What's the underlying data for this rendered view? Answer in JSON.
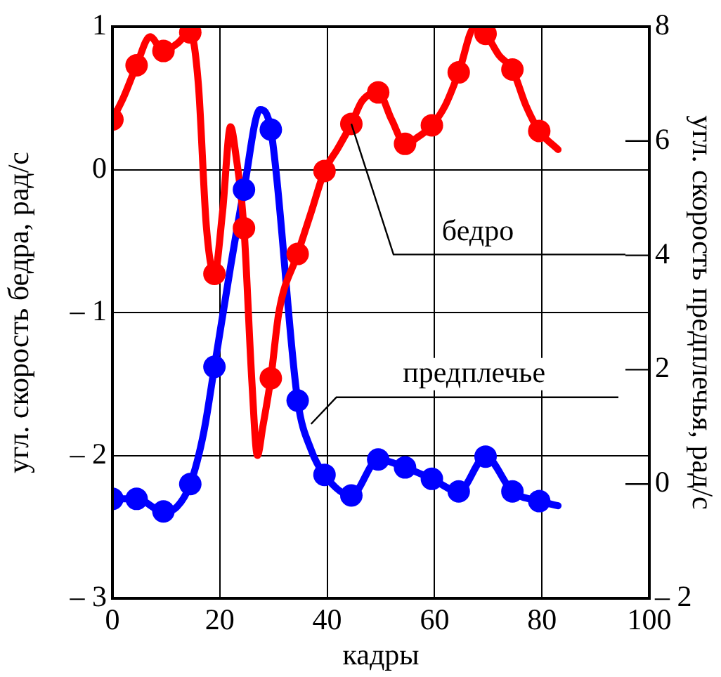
{
  "chart_data": {
    "type": "line",
    "xlabel": "кадры",
    "ylabel": "угл. скорость бедра, рад/с",
    "y2label": "угл. скорость предплечья, рад/с",
    "xlim": [
      0,
      100
    ],
    "xticks": [
      0,
      20,
      40,
      60,
      80,
      100
    ],
    "ylim": [
      -3,
      1
    ],
    "yticks": [
      {
        "value": -3,
        "label": "– 3"
      },
      {
        "value": -2,
        "label": "– 2"
      },
      {
        "value": -1,
        "label": "– 1"
      },
      0,
      1
    ],
    "y2lim": [
      -2,
      8
    ],
    "y2ticks": [
      {
        "value": -2,
        "label": "– 2"
      },
      0,
      2,
      4,
      6,
      8
    ],
    "grid": true,
    "legend": false,
    "series": [
      {
        "type": "line",
        "axis": "y",
        "color": "#ff0000",
        "marker": "none",
        "x": [
          0,
          2,
          4.5,
          7,
          9.5,
          12,
          14.5,
          16,
          17.5,
          19,
          20.5,
          22,
          23,
          24.5,
          26,
          27,
          28,
          29.5,
          31,
          34.5,
          37,
          39.5,
          42,
          44.5,
          46.5,
          49.5,
          52,
          54.5,
          57,
          59.5,
          62,
          64.5,
          67.5,
          69.5,
          72,
          74.5,
          77,
          79.5,
          83
        ],
        "values": [
          0.35,
          0.5,
          0.73,
          0.93,
          0.83,
          0.88,
          0.96,
          0.6,
          -0.4,
          -0.73,
          -0.3,
          0.3,
          0.1,
          -0.41,
          -1.5,
          -2.0,
          -1.8,
          -1.46,
          -1.0,
          -0.59,
          -0.3,
          -0.01,
          0.15,
          0.32,
          0.48,
          0.54,
          0.35,
          0.18,
          0.23,
          0.31,
          0.45,
          0.68,
          1.0,
          0.95,
          0.8,
          0.7,
          0.45,
          0.27,
          0.14
        ]
      },
      {
        "type": "scatter",
        "axis": "y",
        "color": "#ff0000",
        "marker": "circle",
        "x": [
          0,
          4.5,
          9.5,
          14.5,
          19,
          24.5,
          29.5,
          34.5,
          39.5,
          44.5,
          49.5,
          54.5,
          59.5,
          64.5,
          69.5,
          74.5,
          79.5
        ],
        "values": [
          0.35,
          0.73,
          0.83,
          0.96,
          -0.73,
          -0.41,
          -1.46,
          -0.59,
          -0.01,
          0.32,
          0.54,
          0.18,
          0.31,
          0.68,
          0.95,
          0.7,
          0.27
        ]
      },
      {
        "type": "line",
        "axis": "y2",
        "color": "#0000ff",
        "marker": "none",
        "x": [
          0,
          4.5,
          9.5,
          12,
          14.5,
          17,
          19,
          22,
          24.5,
          27.5,
          29.5,
          34.5,
          37,
          39.5,
          44.5,
          49.5,
          54.5,
          59.5,
          64.5,
          69.5,
          74.5,
          79.5,
          83
        ],
        "values": [
          -0.26,
          -0.26,
          -0.48,
          -0.4,
          0.0,
          0.9,
          2.05,
          3.8,
          5.15,
          6.55,
          6.2,
          1.46,
          0.6,
          0.16,
          -0.2,
          0.43,
          0.29,
          0.09,
          -0.13,
          0.48,
          -0.13,
          -0.3,
          -0.38
        ]
      },
      {
        "type": "scatter",
        "axis": "y2",
        "color": "#0000ff",
        "marker": "circle",
        "x": [
          0,
          4.5,
          9.5,
          14.5,
          19,
          24.5,
          29.5,
          34.5,
          39.5,
          44.5,
          49.5,
          54.5,
          59.5,
          64.5,
          69.5,
          74.5,
          79.5
        ],
        "values": [
          -0.26,
          -0.26,
          -0.48,
          0.0,
          2.05,
          5.15,
          6.2,
          1.46,
          0.16,
          -0.2,
          0.43,
          0.29,
          0.09,
          -0.13,
          0.48,
          -0.13,
          -0.3
        ]
      }
    ],
    "annotations": [
      {
        "text": "бедро",
        "x": 44.5,
        "y": 0.32
      },
      {
        "text": "предплечье",
        "x": 37,
        "y": -1.78
      }
    ]
  }
}
